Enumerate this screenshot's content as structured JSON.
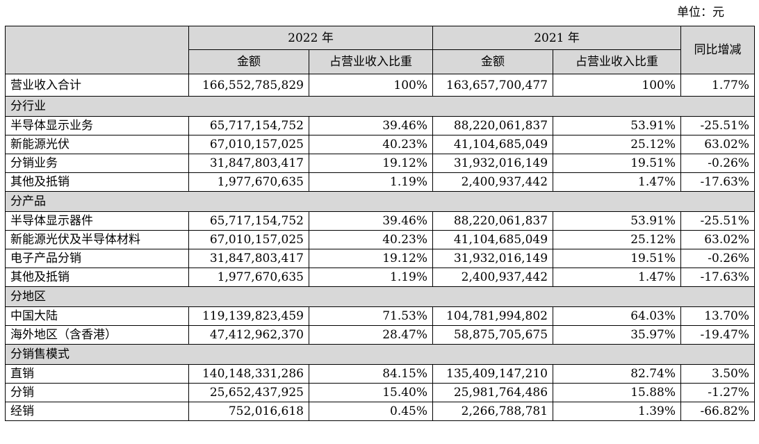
{
  "unit_label": "单位：元",
  "header": {
    "year_2022": "2022 年",
    "year_2021": "2021 年",
    "yoy": "同比增减",
    "amount": "金额",
    "share": "占营业收入比重"
  },
  "total": {
    "label": "营业收入合计",
    "amount_2022": "166,552,785,829",
    "share_2022": "100%",
    "amount_2021": "163,657,700,477",
    "share_2021": "100%",
    "yoy": "1.77%"
  },
  "sections": [
    {
      "title": "分行业",
      "rows": [
        {
          "label": "半导体显示业务",
          "amount_2022": "65,717,154,752",
          "share_2022": "39.46%",
          "amount_2021": "88,220,061,837",
          "share_2021": "53.91%",
          "yoy": "-25.51%"
        },
        {
          "label": "新能源光伏",
          "amount_2022": "67,010,157,025",
          "share_2022": "40.23%",
          "amount_2021": "41,104,685,049",
          "share_2021": "25.12%",
          "yoy": "63.02%"
        },
        {
          "label": "分销业务",
          "amount_2022": "31,847,803,417",
          "share_2022": "19.12%",
          "amount_2021": "31,932,016,149",
          "share_2021": "19.51%",
          "yoy": "-0.26%"
        },
        {
          "label": "其他及抵销",
          "amount_2022": "1,977,670,635",
          "share_2022": "1.19%",
          "amount_2021": "2,400,937,442",
          "share_2021": "1.47%",
          "yoy": "-17.63%"
        }
      ]
    },
    {
      "title": "分产品",
      "rows": [
        {
          "label": "半导体显示器件",
          "amount_2022": "65,717,154,752",
          "share_2022": "39.46%",
          "amount_2021": "88,220,061,837",
          "share_2021": "53.91%",
          "yoy": "-25.51%"
        },
        {
          "label": "新能源光伏及半导体材料",
          "amount_2022": "67,010,157,025",
          "share_2022": "40.23%",
          "amount_2021": "41,104,685,049",
          "share_2021": "25.12%",
          "yoy": "63.02%"
        },
        {
          "label": "电子产品分销",
          "amount_2022": "31,847,803,417",
          "share_2022": "19.12%",
          "amount_2021": "31,932,016,149",
          "share_2021": "19.51%",
          "yoy": "-0.26%"
        },
        {
          "label": "其他及抵销",
          "amount_2022": "1,977,670,635",
          "share_2022": "1.19%",
          "amount_2021": "2,400,937,442",
          "share_2021": "1.47%",
          "yoy": "-17.63%"
        }
      ]
    },
    {
      "title": "分地区",
      "rows": [
        {
          "label": "中国大陆",
          "amount_2022": "119,139,823,459",
          "share_2022": "71.53%",
          "amount_2021": "104,781,994,802",
          "share_2021": "64.03%",
          "yoy": "13.70%"
        },
        {
          "label": "海外地区（含香港）",
          "amount_2022": "47,412,962,370",
          "share_2022": "28.47%",
          "amount_2021": "58,875,705,675",
          "share_2021": "35.97%",
          "yoy": "-19.47%"
        }
      ]
    },
    {
      "title": "分销售模式",
      "rows": [
        {
          "label": "直销",
          "amount_2022": "140,148,331,286",
          "share_2022": "84.15%",
          "amount_2021": "135,409,147,210",
          "share_2021": "82.74%",
          "yoy": "3.50%"
        },
        {
          "label": "分销",
          "amount_2022": "25,652,437,925",
          "share_2022": "15.40%",
          "amount_2021": "25,981,764,486",
          "share_2021": "15.88%",
          "yoy": "-1.27%"
        },
        {
          "label": "经销",
          "amount_2022": "752,016,618",
          "share_2022": "0.45%",
          "amount_2021": "2,266,788,781",
          "share_2021": "1.39%",
          "yoy": "-66.82%"
        }
      ]
    }
  ]
}
